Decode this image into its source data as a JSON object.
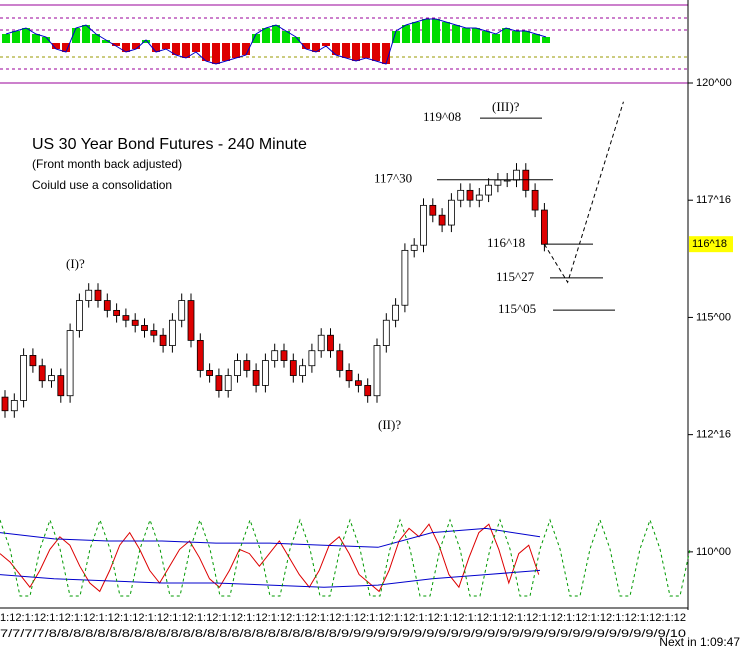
{
  "chart_data": {
    "type": "candlestick",
    "title": "US 30 Year Bond Futures - 240 Minute",
    "subtitle": "(Front month back adjusted)",
    "note": "Coiuld use a consolidation",
    "ylim": [
      108.76,
      121.77
    ],
    "yticks": [
      {
        "value": 120,
        "label": "120^00"
      },
      {
        "value": 117.5,
        "label": "117^16"
      },
      {
        "value": 115,
        "label": "115^00"
      },
      {
        "value": 112.5,
        "label": "112^16"
      },
      {
        "value": 110,
        "label": "110^00"
      }
    ],
    "last_price": {
      "value": 116.5625,
      "label": "116^18",
      "color": "#ffff00"
    },
    "up_color": "#ffffff",
    "down_color": "#dd0000",
    "open": [
      113.3,
      113.01,
      113.23,
      114.19,
      113.97,
      113.65,
      113.76,
      113.33,
      114.72,
      115.36,
      115.58,
      115.36,
      115.15,
      115.04,
      114.94,
      114.83,
      114.72,
      114.62,
      114.4,
      114.94,
      115.36,
      114.51,
      113.87,
      113.76,
      113.44,
      113.76,
      114.08,
      113.87,
      113.55,
      114.08,
      114.29,
      114.08,
      113.76,
      113.97,
      114.29,
      114.62,
      114.29,
      113.87,
      113.65,
      113.55,
      113.33,
      114.4,
      114.94,
      115.26,
      116.43,
      116.54,
      117.39,
      117.18,
      116.97,
      117.5,
      117.71,
      117.5,
      117.61,
      117.82,
      117.93,
      117.93,
      118.14,
      117.71,
      117.29
    ],
    "high": [
      113.45,
      113.38,
      114.34,
      114.34,
      114.12,
      113.91,
      113.91,
      114.87,
      115.51,
      115.73,
      115.73,
      115.51,
      115.3,
      115.19,
      115.09,
      114.98,
      114.87,
      114.77,
      115.09,
      115.51,
      115.51,
      114.66,
      114.02,
      113.91,
      113.91,
      114.23,
      114.23,
      114.02,
      114.23,
      114.44,
      114.44,
      114.23,
      114.12,
      114.44,
      114.77,
      114.77,
      114.44,
      114.02,
      113.8,
      113.7,
      114.55,
      115.09,
      115.41,
      116.58,
      116.69,
      117.54,
      117.54,
      117.33,
      117.65,
      117.86,
      117.86,
      117.76,
      117.97,
      118.08,
      118.08,
      118.29,
      118.29,
      117.86,
      117.44
    ],
    "low": [
      112.86,
      112.86,
      113.08,
      113.82,
      113.5,
      113.5,
      113.18,
      113.18,
      114.57,
      115.21,
      115.21,
      115.0,
      114.89,
      114.79,
      114.68,
      114.57,
      114.47,
      114.25,
      114.25,
      114.79,
      114.36,
      113.72,
      113.61,
      113.29,
      113.29,
      113.61,
      113.72,
      113.4,
      113.4,
      113.93,
      113.93,
      113.61,
      113.61,
      113.82,
      114.14,
      114.14,
      113.72,
      113.5,
      113.4,
      113.18,
      113.18,
      114.25,
      114.79,
      115.11,
      116.28,
      116.39,
      117.03,
      116.82,
      116.82,
      117.35,
      117.35,
      117.35,
      117.46,
      117.67,
      117.78,
      117.78,
      117.56,
      117.14,
      116.41
    ],
    "close": [
      113.01,
      113.23,
      114.19,
      113.97,
      113.65,
      113.76,
      113.33,
      114.72,
      115.36,
      115.58,
      115.36,
      115.15,
      115.04,
      114.94,
      114.83,
      114.72,
      114.62,
      114.4,
      114.94,
      115.36,
      114.51,
      113.87,
      113.76,
      113.44,
      113.76,
      114.08,
      113.87,
      113.55,
      114.08,
      114.29,
      114.08,
      113.76,
      113.97,
      114.29,
      114.62,
      114.29,
      113.87,
      113.65,
      113.55,
      113.33,
      114.4,
      114.94,
      115.26,
      116.43,
      116.54,
      117.39,
      117.18,
      116.97,
      117.5,
      117.71,
      117.5,
      117.61,
      117.82,
      117.93,
      117.93,
      118.14,
      117.71,
      117.29,
      116.56
    ],
    "levels": [
      {
        "label": "119^08",
        "value": 119.25
      },
      {
        "label": "117^30",
        "value": 117.9375
      },
      {
        "label": "116^18",
        "value": 116.5625
      },
      {
        "label": "115^27",
        "value": 115.84375
      },
      {
        "label": "115^05",
        "value": 115.15625
      }
    ],
    "waves": [
      {
        "label": "(I)?"
      },
      {
        "label": "(II)?"
      },
      {
        "label": "(III)?"
      }
    ],
    "projection": {
      "x": [
        58,
        60.5,
        66.5
      ],
      "values": [
        116.56,
        115.75,
        119.6
      ]
    },
    "x_labels_top": "1:12:1:12:1:12:1:12:1:12:1:12:1:12:1:12:1:12:1:12:1:12:1:12:1:12:1:12:1:12:1:12:1:12:1:12:1:12:1:12:1:12:1:12:1:12:1:12:1:12:1:12:1:12:1:12",
    "x_labels_bottom": "7/7/7/7/8/8/8/8/8/8/8/8/8/8/8/8/8/8/8/8/8/8/8/8/8/8/8/8/9/9/9/9/9/9/9/9/9/9/9/9/9/9/9/9/9/9/9/9/9/9/9/9/9/9/9/10",
    "countdown": "Next in 1:09:47",
    "histogram": {
      "lim": [
        -1,
        1
      ],
      "up_color": "#00dd00",
      "down_color": "#dd0000",
      "values": [
        0.3,
        0.4,
        0.5,
        0.3,
        0.2,
        -0.2,
        -0.3,
        0.5,
        0.6,
        0.3,
        0.1,
        -0.1,
        -0.3,
        -0.2,
        0.1,
        -0.3,
        -0.2,
        -0.4,
        -0.5,
        -0.3,
        -0.6,
        -0.7,
        -0.6,
        -0.5,
        -0.4,
        0.3,
        0.5,
        0.6,
        0.4,
        0.2,
        -0.2,
        -0.3,
        -0.1,
        -0.4,
        -0.5,
        -0.6,
        -0.5,
        -0.6,
        -0.7,
        0.4,
        0.6,
        0.7,
        0.8,
        0.8,
        0.7,
        0.6,
        0.5,
        0.5,
        0.4,
        0.3,
        0.5,
        0.4,
        0.4,
        0.3,
        0.2
      ]
    },
    "oscillator": {
      "lim": [
        -1,
        1
      ],
      "series": [
        {
          "color": "#dd0000",
          "values": [
            0.2,
            0.0,
            -0.3,
            -0.6,
            -0.2,
            0.3,
            0.6,
            0.4,
            -0.1,
            -0.5,
            -0.7,
            -0.2,
            0.4,
            0.7,
            0.3,
            -0.2,
            -0.5,
            -0.1,
            0.3,
            0.5,
            0.1,
            -0.4,
            -0.6,
            -0.2,
            0.3,
            0.2,
            -0.1,
            0.2,
            0.5,
            0.1,
            -0.3,
            -0.6,
            -0.2,
            0.4,
            0.6,
            0.2,
            -0.3,
            -0.5,
            -0.7,
            -0.2,
            0.5,
            0.8,
            0.6,
            0.9,
            0.4,
            -0.3,
            -0.6,
            0.1,
            0.7,
            0.9,
            0.3,
            -0.5,
            0.2,
            0.4,
            -0.3
          ]
        },
        {
          "color": "#0000cc",
          "values": [
            0.7,
            0.55,
            0.5,
            0.5,
            0.45,
            0.45,
            0.4,
            0.35,
            0.7,
            0.8,
            0.6
          ]
        },
        {
          "color": "#0000cc",
          "values": [
            -0.3,
            -0.4,
            -0.45,
            -0.5,
            -0.5,
            -0.55,
            -0.6,
            -0.55,
            -0.4,
            -0.3,
            -0.2
          ]
        },
        {
          "color": "#009900",
          "dashed": true,
          "values": [
            1,
            0.31,
            -0.81,
            -0.81,
            0.31,
            1,
            0.31,
            -0.81,
            -0.81,
            0.31,
            1,
            0.31,
            -0.81,
            -0.81,
            0.31,
            1,
            0.31,
            -0.81,
            -0.81,
            0.31,
            1,
            0.31,
            -0.81,
            -0.81,
            0.31,
            1,
            0.31,
            -0.81,
            -0.81,
            0.31,
            1,
            0.31,
            -0.81,
            -0.81,
            0.31,
            1,
            0.31,
            -0.81,
            -0.81,
            0.31,
            1,
            0.31,
            -0.81,
            -0.81,
            0.31,
            1,
            0.31,
            -0.81,
            -0.81,
            0.31,
            1,
            0.31,
            -0.81,
            -0.81,
            0.31,
            1,
            0.31,
            -0.81,
            -0.81,
            0.31,
            1,
            0.31,
            -0.81,
            -0.81,
            0.31,
            1,
            0.31,
            -0.81,
            -0.81,
            0.31
          ]
        }
      ]
    }
  }
}
